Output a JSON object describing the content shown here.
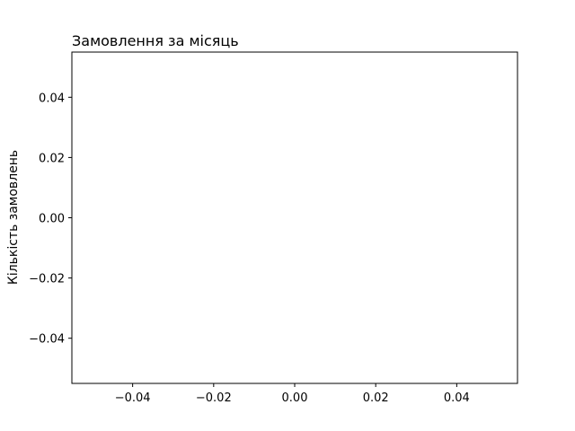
{
  "chart_data": {
    "type": "scatter",
    "title": "Замовлення за місяць",
    "xlabel": "",
    "ylabel": "Кількість замовлень",
    "series": [],
    "xlim": [
      -0.055,
      0.055
    ],
    "ylim": [
      -0.055,
      0.055
    ],
    "x_ticks": [
      -0.04,
      -0.02,
      0.0,
      0.02,
      0.04
    ],
    "y_ticks": [
      -0.04,
      -0.02,
      0.0,
      0.02,
      0.04
    ],
    "x_tick_labels": [
      "−0.04",
      "−0.02",
      "0.00",
      "0.02",
      "0.04"
    ],
    "y_tick_labels": [
      "−0.04",
      "−0.02",
      "0.00",
      "0.02",
      "0.04"
    ],
    "grid": false,
    "legend": "none",
    "colors": {
      "axes": "#000000",
      "background": "#ffffff"
    }
  }
}
